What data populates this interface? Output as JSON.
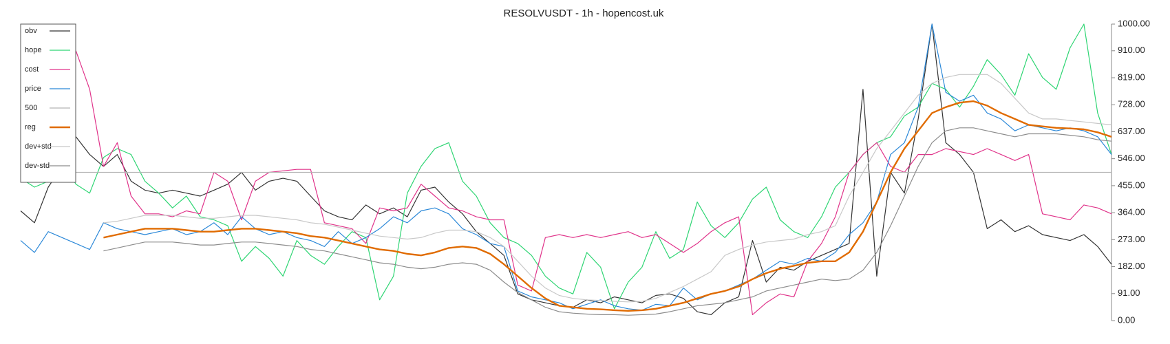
{
  "chart_data": {
    "type": "line",
    "title": "RESOLVUSDT - 1h - hopencost.uk",
    "ylim": [
      0,
      1000
    ],
    "yticks": [
      {
        "value": 0,
        "label": "0.00"
      },
      {
        "value": 91,
        "label": "91.00"
      },
      {
        "value": 182,
        "label": "182.00"
      },
      {
        "value": 273,
        "label": "273.00"
      },
      {
        "value": 364,
        "label": "364.00"
      },
      {
        "value": 455,
        "label": "455.00"
      },
      {
        "value": 546,
        "label": "546.00"
      },
      {
        "value": 637,
        "label": "637.00"
      },
      {
        "value": 728,
        "label": "728.00"
      },
      {
        "value": 819,
        "label": "819.00"
      },
      {
        "value": 910,
        "label": "910.00"
      },
      {
        "value": 1000,
        "label": "1000.00"
      }
    ],
    "yaxis_side": "right",
    "grid": false,
    "legend": "upper left",
    "series": [
      {
        "name": "obv",
        "color": "#333333",
        "width": 1.2,
        "values": [
          370,
          330,
          450,
          520,
          620,
          560,
          520,
          560,
          470,
          440,
          430,
          440,
          430,
          420,
          440,
          460,
          500,
          440,
          470,
          480,
          470,
          420,
          370,
          350,
          340,
          390,
          360,
          380,
          350,
          440,
          450,
          400,
          360,
          300,
          260,
          220,
          90,
          70,
          60,
          50,
          45,
          70,
          60,
          80,
          70,
          60,
          85,
          90,
          75,
          30,
          20,
          60,
          80,
          270,
          130,
          180,
          170,
          200,
          220,
          240,
          260,
          780,
          150,
          500,
          430,
          680,
          1000,
          600,
          560,
          500,
          310,
          340,
          300,
          320,
          290,
          280,
          270,
          290,
          250,
          190
        ]
      },
      {
        "name": "hope",
        "color": "#2ed573",
        "width": 1.2,
        "values": [
          480,
          450,
          470,
          530,
          460,
          430,
          550,
          580,
          560,
          470,
          430,
          380,
          420,
          350,
          340,
          320,
          200,
          250,
          210,
          150,
          270,
          220,
          190,
          250,
          300,
          280,
          70,
          150,
          430,
          520,
          580,
          600,
          470,
          420,
          330,
          280,
          260,
          220,
          150,
          110,
          90,
          230,
          180,
          40,
          130,
          180,
          300,
          210,
          240,
          400,
          320,
          280,
          330,
          410,
          450,
          340,
          300,
          280,
          350,
          450,
          500,
          560,
          600,
          620,
          690,
          720,
          800,
          780,
          720,
          790,
          880,
          830,
          760,
          900,
          820,
          780,
          920,
          1000,
          700,
          560
        ]
      },
      {
        "name": "cost",
        "color": "#e0338a",
        "width": 1.2,
        "values": [
          null,
          null,
          null,
          null,
          910,
          780,
          520,
          600,
          420,
          360,
          360,
          350,
          370,
          360,
          500,
          470,
          340,
          470,
          500,
          505,
          510,
          510,
          330,
          320,
          310,
          260,
          380,
          370,
          380,
          460,
          420,
          380,
          370,
          350,
          340,
          340,
          120,
          100,
          280,
          290,
          280,
          290,
          280,
          290,
          300,
          280,
          290,
          260,
          230,
          260,
          300,
          330,
          350,
          20,
          60,
          90,
          80,
          200,
          260,
          350,
          500,
          560,
          600,
          520,
          500,
          560,
          560,
          580,
          570,
          560,
          580,
          560,
          540,
          560,
          360,
          350,
          340,
          390,
          380,
          360
        ]
      },
      {
        "name": "price",
        "color": "#2b88d8",
        "width": 1.2,
        "values": [
          270,
          230,
          300,
          280,
          260,
          240,
          330,
          310,
          300,
          290,
          300,
          310,
          290,
          300,
          330,
          290,
          350,
          310,
          290,
          300,
          280,
          270,
          250,
          300,
          260,
          280,
          310,
          350,
          330,
          370,
          380,
          360,
          310,
          290,
          260,
          250,
          100,
          80,
          70,
          60,
          40,
          55,
          70,
          50,
          40,
          35,
          55,
          50,
          110,
          70,
          90,
          100,
          120,
          140,
          170,
          200,
          190,
          210,
          200,
          230,
          290,
          330,
          400,
          560,
          600,
          720,
          1000,
          770,
          740,
          760,
          700,
          680,
          640,
          660,
          650,
          640,
          650,
          640,
          620,
          560
        ]
      },
      {
        "name": "500",
        "color": "#b5b5b5",
        "width": 1.2,
        "values": [
          500,
          500,
          500,
          500,
          500,
          500,
          500,
          500,
          500,
          500,
          500,
          500,
          500,
          500,
          500,
          500,
          500,
          500,
          500,
          500,
          500,
          500,
          500,
          500,
          500,
          500,
          500,
          500,
          500,
          500,
          500,
          500,
          500,
          500,
          500,
          500,
          500,
          500,
          500,
          500,
          500,
          500,
          500,
          500,
          500,
          500,
          500,
          500,
          500,
          500,
          500,
          500,
          500,
          500,
          500,
          500,
          500,
          500,
          500,
          500,
          500,
          500,
          500,
          500,
          500,
          500,
          500,
          500,
          500,
          500,
          500,
          500,
          500,
          500,
          500,
          500,
          500,
          500,
          500,
          500
        ]
      },
      {
        "name": "reg",
        "color": "#e06b00",
        "width": 2.4,
        "values": [
          null,
          null,
          null,
          null,
          null,
          null,
          280,
          290,
          300,
          310,
          310,
          310,
          305,
          300,
          300,
          305,
          310,
          310,
          305,
          300,
          295,
          285,
          280,
          270,
          260,
          250,
          240,
          235,
          225,
          220,
          230,
          245,
          250,
          245,
          225,
          190,
          150,
          110,
          75,
          50,
          45,
          40,
          38,
          35,
          33,
          35,
          40,
          50,
          60,
          75,
          90,
          100,
          115,
          140,
          160,
          175,
          185,
          195,
          200,
          200,
          230,
          300,
          400,
          500,
          580,
          640,
          700,
          720,
          735,
          740,
          725,
          700,
          680,
          660,
          655,
          650,
          648,
          645,
          635,
          620
        ]
      },
      {
        "name": "dev+std",
        "color": "#c8c8c8",
        "width": 1.2,
        "values": [
          null,
          null,
          null,
          null,
          null,
          null,
          330,
          335,
          345,
          355,
          355,
          355,
          350,
          345,
          345,
          350,
          355,
          355,
          350,
          345,
          340,
          330,
          325,
          315,
          305,
          295,
          285,
          280,
          275,
          280,
          295,
          305,
          305,
          300,
          280,
          250,
          200,
          150,
          110,
          85,
          75,
          70,
          68,
          65,
          63,
          65,
          75,
          95,
          115,
          140,
          165,
          220,
          240,
          255,
          265,
          270,
          275,
          290,
          300,
          320,
          420,
          500,
          580,
          640,
          700,
          760,
          800,
          820,
          830,
          830,
          830,
          800,
          750,
          700,
          680,
          680,
          675,
          670,
          665,
          660
        ]
      },
      {
        "name": "dev-std",
        "color": "#8c8c8c",
        "width": 1.2,
        "values": [
          null,
          null,
          null,
          null,
          null,
          null,
          235,
          245,
          255,
          265,
          265,
          265,
          260,
          255,
          255,
          260,
          265,
          265,
          260,
          255,
          250,
          240,
          235,
          225,
          215,
          205,
          195,
          190,
          180,
          175,
          180,
          190,
          195,
          190,
          170,
          130,
          95,
          70,
          45,
          30,
          25,
          22,
          20,
          20,
          18,
          20,
          22,
          30,
          40,
          50,
          55,
          60,
          70,
          80,
          100,
          110,
          120,
          130,
          140,
          135,
          140,
          170,
          230,
          320,
          420,
          520,
          600,
          640,
          650,
          650,
          640,
          630,
          620,
          630,
          630,
          630,
          625,
          620,
          610,
          605
        ]
      }
    ]
  }
}
